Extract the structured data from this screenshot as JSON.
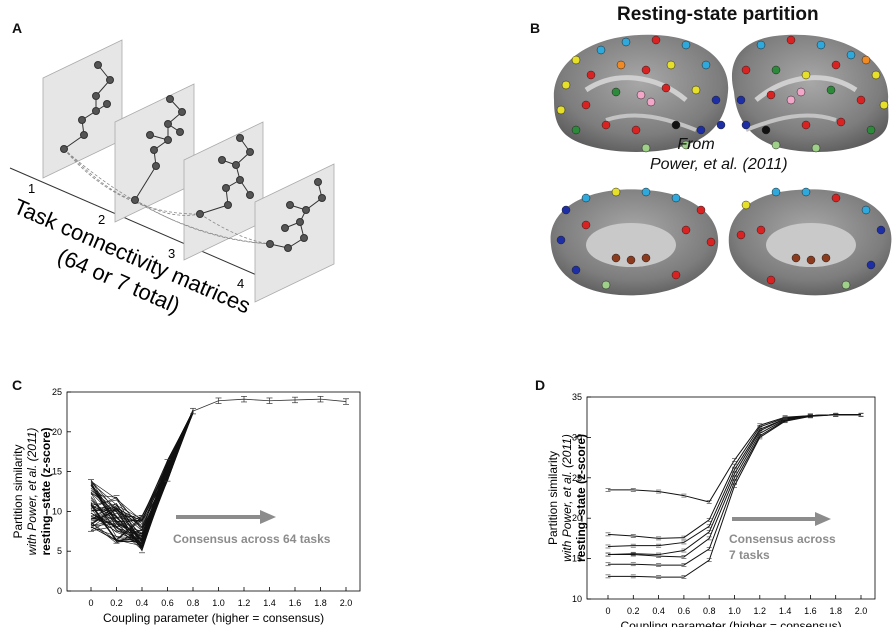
{
  "panel_letters": {
    "a": "A",
    "b": "B",
    "c": "C",
    "d": "D"
  },
  "panel_a": {
    "task_numbers": [
      "1",
      "2",
      "3",
      "4"
    ],
    "caption_line1": "Task connectivity matrices",
    "caption_line2": "(64 or 7 total)"
  },
  "panel_b": {
    "title": "Resting-state partition",
    "note_line1": "From",
    "note_line2": "Power, et al. (2011)"
  },
  "chart_data": [
    {
      "panel": "C",
      "type": "line",
      "title": "",
      "xlabel": "Coupling parameter (higher = consensus)",
      "ylabel_line1": "Partition similarity",
      "ylabel_line2": "with Power, et al. (2011)",
      "ylabel_line3": "resting–state (z-score)",
      "x": [
        0,
        0.2,
        0.4,
        0.6,
        0.8,
        1.0,
        1.2,
        1.4,
        1.6,
        1.8,
        2.0
      ],
      "x_tick_labels": [
        "0",
        "0.2",
        "0.4",
        "0.6",
        "0.8",
        "1.0",
        "1.2",
        "1.4",
        "1.6",
        "1.8",
        "2.0"
      ],
      "ylim": [
        0,
        25
      ],
      "y_ticks": [
        0,
        5,
        10,
        15,
        20,
        25
      ],
      "y_tick_labels": [
        "0",
        "5",
        "10",
        "15",
        "20",
        "25"
      ],
      "series_count": 64,
      "series_range_low": [
        7.5,
        6.0,
        4.8,
        13.8,
        22.3,
        23.8,
        23.9,
        23.8,
        23.9,
        23.9,
        23.7
      ],
      "series_range_high": [
        14.0,
        12.0,
        9.5,
        16.5,
        22.8,
        23.8,
        23.9,
        23.8,
        23.9,
        23.9,
        23.7
      ],
      "mean_after_consensus": [
        null,
        null,
        null,
        null,
        22.6,
        23.9,
        24.1,
        23.9,
        24.0,
        24.1,
        23.8
      ],
      "annotation": "Consensus across 64 tasks",
      "annotation_color": "#8c8c8c",
      "grid": false
    },
    {
      "panel": "D",
      "type": "line",
      "title": "",
      "xlabel": "Coupling parameter (higher = consensus)",
      "ylabel_line1": "Partition similarity",
      "ylabel_line2": "with Power, et al. (2011)",
      "ylabel_line3": "resting–state (z-score)",
      "x": [
        0,
        0.2,
        0.4,
        0.6,
        0.8,
        1.0,
        1.2,
        1.4,
        1.6,
        1.8,
        2.0
      ],
      "x_tick_labels": [
        "0",
        "0.2",
        "0.4",
        "0.6",
        "0.8",
        "1.0",
        "1.2",
        "1.4",
        "1.6",
        "1.8",
        "2.0"
      ],
      "ylim": [
        10,
        35
      ],
      "y_ticks": [
        10,
        15,
        20,
        25,
        30,
        35
      ],
      "y_tick_labels": [
        "10",
        "15",
        "20",
        "25",
        "30",
        "35"
      ],
      "series": [
        {
          "values": [
            23.5,
            23.5,
            23.3,
            22.8,
            22.0,
            27.2,
            31.5,
            32.5,
            32.7,
            32.8,
            32.8
          ]
        },
        {
          "values": [
            18.0,
            17.8,
            17.5,
            17.6,
            19.8,
            26.5,
            31.3,
            32.4,
            32.7,
            32.8,
            32.8
          ]
        },
        {
          "values": [
            16.5,
            16.6,
            16.6,
            17.0,
            19.0,
            26.0,
            31.0,
            32.3,
            32.7,
            32.8,
            32.8
          ]
        },
        {
          "values": [
            15.5,
            15.6,
            15.5,
            16.0,
            18.3,
            25.5,
            30.8,
            32.3,
            32.7,
            32.8,
            32.8
          ]
        },
        {
          "values": [
            15.5,
            15.5,
            15.3,
            15.2,
            17.5,
            25.0,
            30.5,
            32.2,
            32.7,
            32.8,
            32.8
          ]
        },
        {
          "values": [
            14.3,
            14.3,
            14.2,
            14.2,
            16.2,
            24.5,
            30.2,
            32.1,
            32.7,
            32.8,
            32.8
          ]
        },
        {
          "values": [
            12.8,
            12.8,
            12.7,
            12.7,
            14.8,
            24.0,
            30.0,
            32.0,
            32.6,
            32.8,
            32.8
          ]
        }
      ],
      "annotation_line1": "Consensus across",
      "annotation_line2": "7 tasks",
      "annotation_color": "#8c8c8c",
      "grid": false
    }
  ]
}
